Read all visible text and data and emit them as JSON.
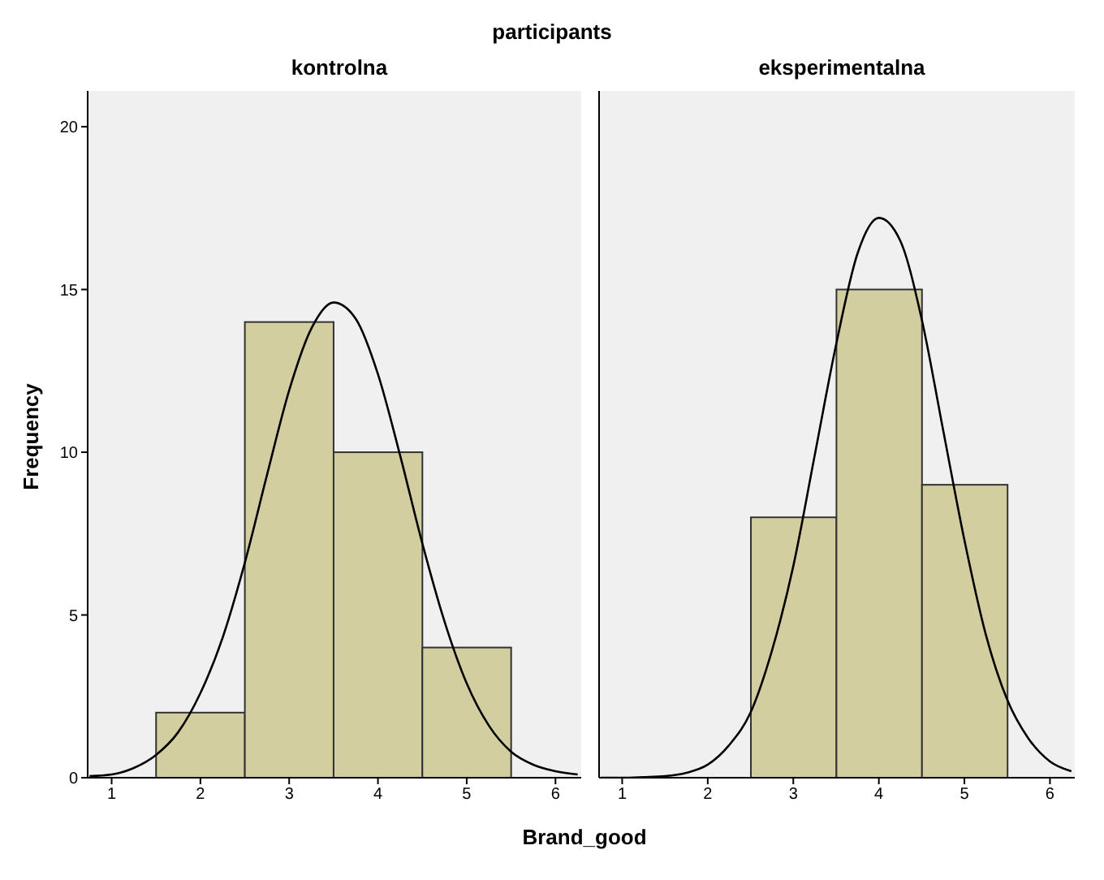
{
  "chart_data": [
    {
      "type": "histogram",
      "title": "kontrolna",
      "ylabel": "Frequency",
      "xlabel": "Brand_good",
      "annotations": [
        "participants"
      ],
      "bins": [
        1.5,
        2.5,
        3.5,
        4.5,
        5.5
      ],
      "xlim": [
        0.73,
        6.29
      ],
      "xticks": [
        1,
        2,
        3,
        4,
        5,
        6
      ],
      "ylim": [
        0,
        21.1
      ],
      "yticks": [
        0,
        5,
        10,
        15,
        20
      ],
      "marker": "none",
      "grid": false,
      "series": [
        {
          "color": "#d3ce9f",
          "values": [
            2,
            14,
            10,
            4
          ]
        },
        {
          "type": "line",
          "color": "#000000",
          "x": [
            0.75,
            1,
            1.25,
            1.5,
            1.75,
            2,
            2.25,
            2.5,
            2.75,
            3,
            3.25,
            3.5,
            3.75,
            4,
            4.25,
            4.5,
            4.75,
            5,
            5.25,
            5.5,
            5.75,
            6,
            6.25
          ],
          "values": [
            0.05,
            0.1,
            0.3,
            0.7,
            1.4,
            2.6,
            4.3,
            6.6,
            9.3,
            11.9,
            13.8,
            14.6,
            14.1,
            12.4,
            9.9,
            7.2,
            4.8,
            2.9,
            1.6,
            0.8,
            0.4,
            0.2,
            0.1
          ]
        }
      ]
    },
    {
      "type": "histogram",
      "title": "eksperimentalna",
      "bins": [
        2.5,
        3.5,
        4.5,
        5.5
      ],
      "xlim": [
        0.73,
        6.29
      ],
      "xticks": [
        1,
        2,
        3,
        4,
        5,
        6
      ],
      "ylim": [
        0,
        21.1
      ],
      "yticks": [
        0,
        5,
        10,
        15,
        20
      ],
      "tick_labels": "x",
      "marker": "none",
      "grid": false,
      "series": [
        {
          "color": "#d3ce9f",
          "values": [
            8,
            15,
            9
          ]
        },
        {
          "type": "line",
          "color": "#000000",
          "x": [
            0.75,
            1,
            1.25,
            1.5,
            1.75,
            2,
            2.25,
            2.5,
            2.75,
            3,
            3.25,
            3.5,
            3.75,
            4,
            4.25,
            4.5,
            4.75,
            5,
            5.25,
            5.5,
            5.75,
            6,
            6.25
          ],
          "values": [
            0,
            0,
            0.02,
            0.05,
            0.15,
            0.4,
            1,
            2,
            3.9,
            6.5,
            9.9,
            13.3,
            16.1,
            17.2,
            16.5,
            14.1,
            10.7,
            7.3,
            4.4,
            2.4,
            1.2,
            0.5,
            0.2
          ]
        }
      ]
    }
  ]
}
